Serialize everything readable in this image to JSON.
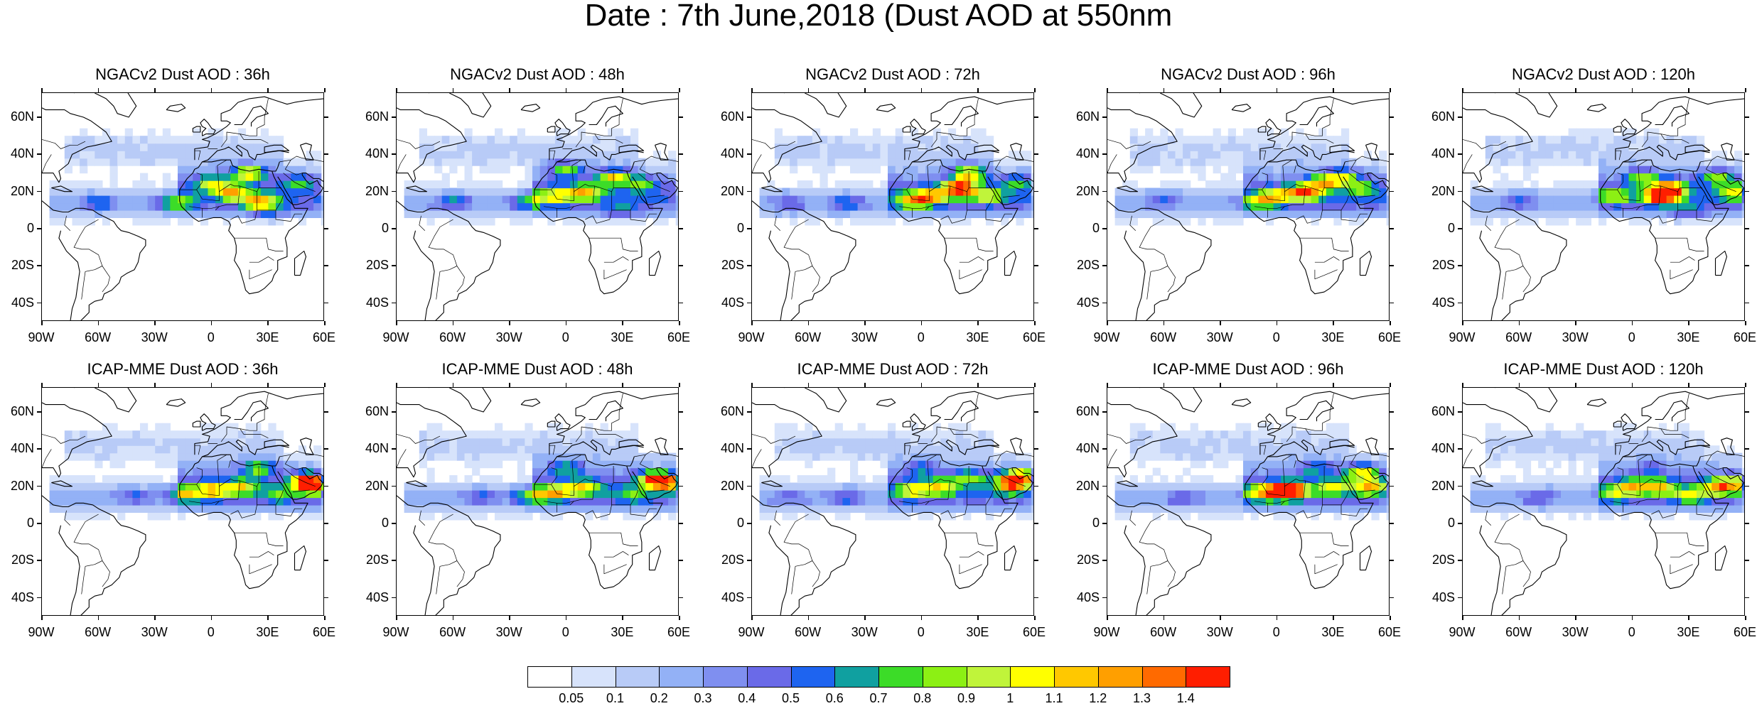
{
  "title": "Date : 7th June,2018 (Dust AOD at 550nm",
  "panels": [
    {
      "title": "NGACv2 Dust AOD : 36h",
      "hotspots": [
        [
          20,
          30,
          1.1
        ],
        [
          10,
          20,
          0.9
        ],
        [
          25,
          15,
          0.9
        ],
        [
          0,
          25,
          0.8
        ],
        [
          -20,
          14,
          0.8
        ],
        [
          -60,
          14,
          0.6
        ],
        [
          45,
          25,
          0.6
        ],
        [
          30,
          10,
          0.5
        ]
      ]
    },
    {
      "title": "NGACv2 Dust AOD : 48h",
      "hotspots": [
        [
          25,
          28,
          1.0
        ],
        [
          10,
          20,
          0.9
        ],
        [
          -5,
          18,
          0.8
        ],
        [
          0,
          32,
          0.8
        ],
        [
          -20,
          15,
          0.7
        ],
        [
          40,
          25,
          0.6
        ],
        [
          -60,
          15,
          0.6
        ],
        [
          30,
          10,
          0.5
        ]
      ]
    },
    {
      "title": "NGACv2 Dust AOD : 72h",
      "hotspots": [
        [
          20,
          22,
          1.3
        ],
        [
          25,
          30,
          1.1
        ],
        [
          5,
          18,
          0.9
        ],
        [
          -5,
          15,
          0.9
        ],
        [
          35,
          18,
          0.7
        ],
        [
          50,
          25,
          0.6
        ],
        [
          -40,
          14,
          0.6
        ],
        [
          -70,
          14,
          0.5
        ]
      ]
    },
    {
      "title": "NGACv2 Dust AOD : 96h",
      "hotspots": [
        [
          15,
          20,
          1.1
        ],
        [
          25,
          25,
          0.9
        ],
        [
          0,
          18,
          0.8
        ],
        [
          35,
          28,
          0.8
        ],
        [
          -10,
          15,
          0.7
        ],
        [
          -60,
          16,
          0.5
        ],
        [
          45,
          22,
          0.6
        ]
      ]
    },
    {
      "title": "NGACv2 Dust AOD : 120h",
      "hotspots": [
        [
          15,
          18,
          1.3
        ],
        [
          20,
          22,
          1.1
        ],
        [
          5,
          28,
          0.8
        ],
        [
          45,
          28,
          0.8
        ],
        [
          55,
          20,
          0.8
        ],
        [
          -10,
          18,
          0.7
        ],
        [
          -60,
          15,
          0.5
        ],
        [
          30,
          10,
          0.5
        ]
      ]
    },
    {
      "title": "ICAP-MME Dust AOD : 36h",
      "hotspots": [
        [
          0,
          18,
          0.9
        ],
        [
          -15,
          16,
          0.8
        ],
        [
          15,
          20,
          0.8
        ],
        [
          25,
          30,
          0.8
        ],
        [
          50,
          23,
          1.2
        ],
        [
          55,
          20,
          0.9
        ],
        [
          -40,
          15,
          0.5
        ],
        [
          35,
          15,
          0.5
        ]
      ]
    },
    {
      "title": "ICAP-MME Dust AOD : 48h",
      "hotspots": [
        [
          -5,
          17,
          0.9
        ],
        [
          10,
          20,
          0.8
        ],
        [
          -20,
          15,
          0.8
        ],
        [
          0,
          30,
          0.7
        ],
        [
          47,
          24,
          1.2
        ],
        [
          55,
          22,
          0.9
        ],
        [
          -45,
          15,
          0.5
        ],
        [
          35,
          15,
          0.5
        ]
      ]
    },
    {
      "title": "ICAP-MME Dust AOD : 72h",
      "hotspots": [
        [
          -5,
          18,
          0.8
        ],
        [
          10,
          20,
          0.8
        ],
        [
          48,
          22,
          1.2
        ],
        [
          52,
          26,
          0.9
        ],
        [
          25,
          25,
          0.7
        ],
        [
          0,
          30,
          0.6
        ],
        [
          -40,
          14,
          0.5
        ],
        [
          -70,
          14,
          0.4
        ]
      ]
    },
    {
      "title": "ICAP-MME Dust AOD : 96h",
      "hotspots": [
        [
          8,
          18,
          1.3
        ],
        [
          0,
          18,
          0.9
        ],
        [
          45,
          28,
          1.0
        ],
        [
          50,
          20,
          0.9
        ],
        [
          30,
          20,
          0.8
        ],
        [
          -10,
          16,
          0.7
        ],
        [
          -50,
          14,
          0.5
        ],
        [
          20,
          30,
          0.6
        ]
      ]
    },
    {
      "title": "ICAP-MME Dust AOD : 120h",
      "hotspots": [
        [
          0,
          20,
          0.8
        ],
        [
          15,
          20,
          0.8
        ],
        [
          45,
          20,
          0.9
        ],
        [
          55,
          22,
          0.8
        ],
        [
          30,
          15,
          0.7
        ],
        [
          -10,
          16,
          0.6
        ],
        [
          -50,
          14,
          0.5
        ],
        [
          10,
          30,
          0.5
        ]
      ]
    }
  ],
  "lat_labels": [
    "60N",
    "40N",
    "20N",
    "0",
    "20S",
    "40S"
  ],
  "lon_labels": [
    "90W",
    "60W",
    "30W",
    "0",
    "30E",
    "60E"
  ],
  "colorbar": {
    "colors": [
      "#ffffff",
      "#d7e3fb",
      "#b8cbf7",
      "#93b1f6",
      "#7f8ff0",
      "#6a6ae8",
      "#1e64f0",
      "#10a0a0",
      "#3cdc28",
      "#8cf014",
      "#c0f43a",
      "#ffff00",
      "#ffc800",
      "#ff9f00",
      "#ff6a00",
      "#ff1e00"
    ],
    "labels": [
      "0.05",
      "0.1",
      "0.2",
      "0.3",
      "0.4",
      "0.5",
      "0.6",
      "0.7",
      "0.8",
      "0.9",
      "1",
      "1.1",
      "1.2",
      "1.3",
      "1.4"
    ]
  }
}
